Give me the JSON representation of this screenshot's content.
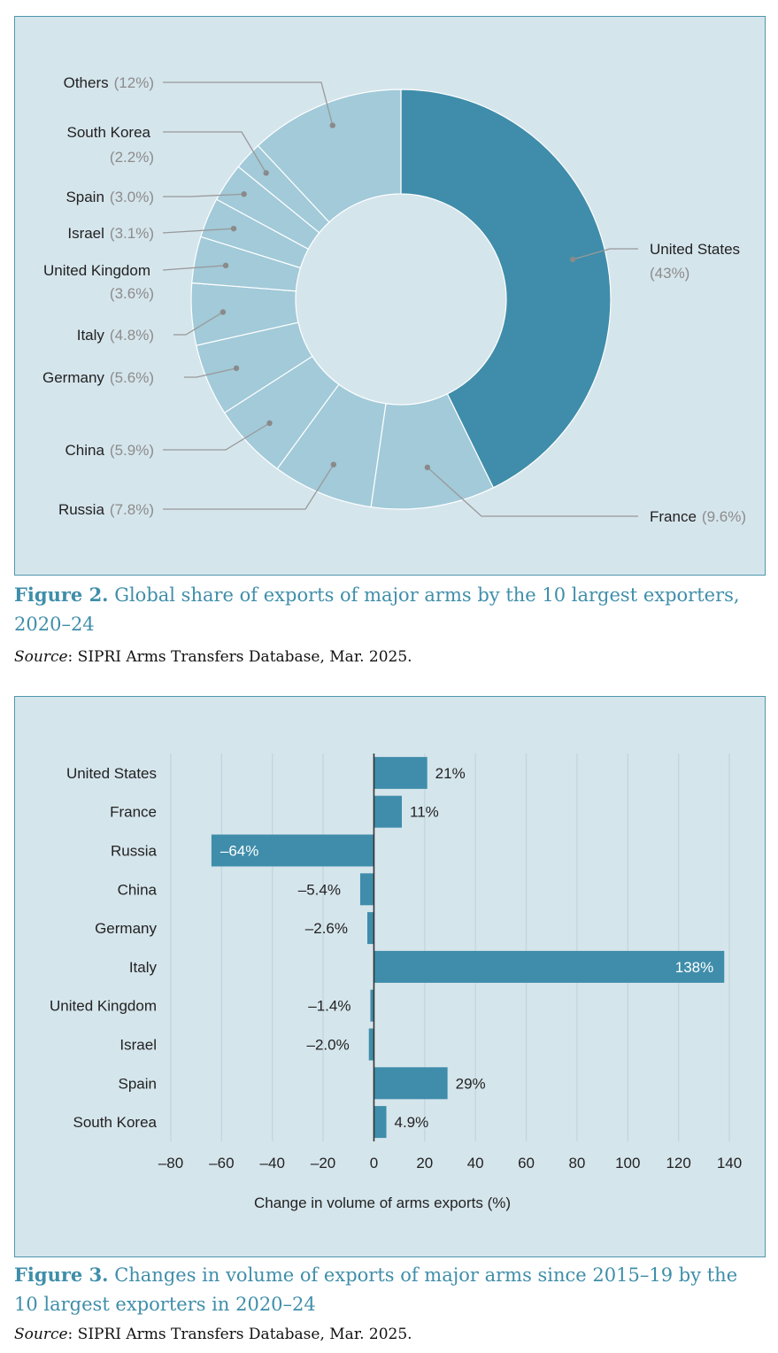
{
  "figure2": {
    "caption_prefix": "Figure 2.",
    "caption_text": "Global share of exports of major arms by the 10 largest exporters, 2020–24",
    "source_label": "Source",
    "source_text": ": SIPRI Arms Transfers Database, Mar. 2025."
  },
  "figure3": {
    "caption_prefix": "Figure 3.",
    "caption_text": "Changes in volume of exports of major arms since 2015–19 by the 10 largest exporters in 2020–24",
    "source_label": "Source",
    "source_text": ": SIPRI Arms Transfers Database, Mar. 2025."
  },
  "colors": {
    "dark": "#3f8daa",
    "light": "#a2cad9",
    "panel": "#d5e5ec",
    "leader": "#999999"
  },
  "chart_data": [
    {
      "type": "pie",
      "variant": "donut",
      "slices": [
        {
          "name": "United States",
          "value": 43,
          "label": "(43%)"
        },
        {
          "name": "France",
          "value": 9.6,
          "label": "(9.6%)"
        },
        {
          "name": "Russia",
          "value": 7.8,
          "label": "(7.8%)"
        },
        {
          "name": "China",
          "value": 5.9,
          "label": "(5.9%)"
        },
        {
          "name": "Germany",
          "value": 5.6,
          "label": "(5.6%)"
        },
        {
          "name": "Italy",
          "value": 4.8,
          "label": "(4.8%)"
        },
        {
          "name": "United Kingdom",
          "value": 3.6,
          "label": "(3.6%)"
        },
        {
          "name": "Israel",
          "value": 3.1,
          "label": "(3.1%)"
        },
        {
          "name": "Spain",
          "value": 3.0,
          "label": "(3.0%)"
        },
        {
          "name": "South Korea",
          "value": 2.2,
          "label": "(2.2%)"
        },
        {
          "name": "Others",
          "value": 12,
          "label": "(12%)"
        }
      ]
    },
    {
      "type": "bar",
      "orientation": "horizontal",
      "categories": [
        "United States",
        "France",
        "Russia",
        "China",
        "Germany",
        "Italy",
        "United Kingdom",
        "Israel",
        "Spain",
        "South Korea"
      ],
      "values": [
        21,
        11,
        -64,
        -5.4,
        -2.6,
        138,
        -1.4,
        -2.0,
        29,
        4.9
      ],
      "value_labels": [
        "21%",
        "11%",
        "–64%",
        "–5.4%",
        "–2.6%",
        "138%",
        "–1.4%",
        "–2.0%",
        "29%",
        "4.9%"
      ],
      "xlabel": "Change in volume of arms exports (%)",
      "xlim": [
        -80,
        140
      ],
      "xticks": [
        -80,
        -60,
        -40,
        -20,
        0,
        20,
        40,
        60,
        80,
        100,
        120,
        140
      ],
      "xtick_labels": [
        "–80",
        "–60",
        "–40",
        "–20",
        "0",
        "20",
        "40",
        "60",
        "80",
        "100",
        "120",
        "140"
      ],
      "grid": true
    }
  ]
}
